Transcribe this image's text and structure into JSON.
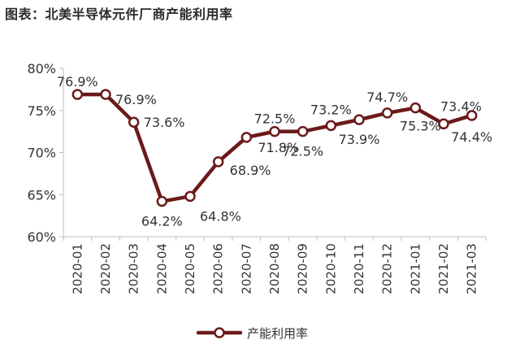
{
  "page": {
    "title": "图表：北美半导体元件厂商产能利用率"
  },
  "chart_data": {
    "type": "line",
    "title": "图表：北美半导体元件厂商产能利用率",
    "xlabel": "",
    "ylabel": "",
    "ylim": [
      60,
      80
    ],
    "yticks": [
      "60%",
      "65%",
      "70%",
      "75%",
      "80%"
    ],
    "ytick_values": [
      60,
      65,
      70,
      75,
      80
    ],
    "grid": false,
    "legend_position": "bottom",
    "categories": [
      "2020-01",
      "2020-02",
      "2020-03",
      "2020-04",
      "2020-05",
      "2020-06",
      "2020-07",
      "2020-08",
      "2020-09",
      "2020-10",
      "2020-11",
      "2020-12",
      "2021-01",
      "2021-02",
      "2021-03"
    ],
    "series": [
      {
        "name": "产能利用率",
        "color": "#6b1a1a",
        "values": [
          76.9,
          76.9,
          73.6,
          64.2,
          64.8,
          68.9,
          71.8,
          72.5,
          72.5,
          73.2,
          73.9,
          74.7,
          75.3,
          73.4,
          74.4
        ],
        "labels": [
          "76.9%",
          "76.9%",
          "73.6%",
          "64.2%",
          "64.8%",
          "68.9%",
          "71.8%",
          "72.5%",
          "72.5%",
          "73.2%",
          "73.9%",
          "74.7%",
          "75.3%",
          "73.4%",
          "74.4%"
        ]
      }
    ]
  }
}
